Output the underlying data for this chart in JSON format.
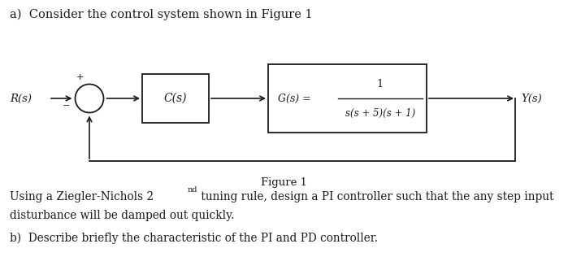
{
  "title_a": "a)  Consider the control system shown in Figure 1",
  "figure_label": "Figure 1",
  "text_zn_pre": "Using a Ziegler-Nichols 2",
  "text_zn_super": "nd",
  "text_zn_post": " tuning rule, design a PI controller such that the any step input",
  "text_zn_line2": "disturbance will be damped out quickly.",
  "text_b": "b)  Describe briefly the characteristic of the PI and PD controller.",
  "R_label": "R(s)",
  "plus_label": "+",
  "minus_label": "−",
  "C_label": "C(s)",
  "G_label": "G(s) =",
  "G_num": "1",
  "G_den": "s(s + 5)(s + 1)",
  "Y_label": "Y(s)",
  "bg_color": "#ffffff",
  "box_color": "#1a1a1a",
  "text_color": "#1a1a1a",
  "arrow_color": "#1a1a1a",
  "font_size_title": 10.5,
  "font_size_body": 9.8,
  "font_size_diagram": 9.5,
  "font_size_small": 8.5
}
